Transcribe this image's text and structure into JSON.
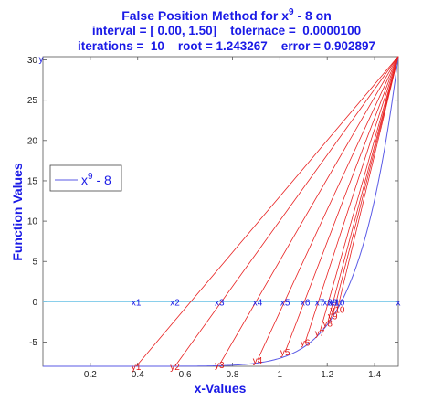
{
  "chart_data": {
    "type": "line",
    "title_line1": "False Position Method for x",
    "title_sup": "9",
    "title_line1_end": " - 8 on",
    "title_line2": "interval = [ 0.00, 1.50]    tolernace =  0.0000100",
    "title_line3": "iterations =  10    root = 1.243267    error = 0.902897",
    "xlabel": "x-Values",
    "ylabel": "Function Values",
    "xlim": [
      0,
      1.5
    ],
    "ylim": [
      -8,
      30.4
    ],
    "xticks": [
      0.2,
      0.4,
      0.6,
      0.8,
      1.0,
      1.2,
      1.4
    ],
    "xtick_labels": [
      "0.2",
      "0.4",
      "0.6",
      "0.8",
      "1",
      "1.2",
      "1.4"
    ],
    "yticks": [
      -5,
      0,
      5,
      10,
      15,
      20,
      25,
      30
    ],
    "ytick_labels": [
      "-5",
      "0",
      "5",
      "10",
      "15",
      "20",
      "25",
      "30"
    ],
    "legend": {
      "base": "x",
      "sup": "9",
      "rest": " - 8",
      "placement": "left"
    },
    "upper_point": {
      "x": 1.5,
      "y": 30.44,
      "label": "x"
    },
    "iterations": [
      {
        "x": 0.3937,
        "y": -7.9998,
        "xlabel": "x1",
        "ylabel": "y1"
      },
      {
        "x": 0.5575,
        "y": -7.9949,
        "xlabel": "x2",
        "ylabel": "y2"
      },
      {
        "x": 0.7453,
        "y": -7.8,
        "xlabel": "x3",
        "ylabel": "y3"
      },
      {
        "x": 0.9062,
        "y": -7.2,
        "xlabel": "x4",
        "ylabel": "y4"
      },
      {
        "x": 1.0226,
        "y": -6.2,
        "xlabel": "x5",
        "ylabel": "y5"
      },
      {
        "x": 1.1071,
        "y": -5.0,
        "xlabel": "x6",
        "ylabel": "y6"
      },
      {
        "x": 1.1685,
        "y": -3.8,
        "xlabel": "x7",
        "ylabel": "y7"
      },
      {
        "x": 1.2018,
        "y": -2.6,
        "xlabel": "x8",
        "ylabel": "y8"
      },
      {
        "x": 1.2234,
        "y": -1.7,
        "xlabel": "x9",
        "ylabel": "y9"
      },
      {
        "x": 1.2433,
        "y": -0.9,
        "xlabel": "x10",
        "ylabel": "y10"
      }
    ],
    "colors": {
      "function": "#5a5ae6",
      "secants": "#e82020",
      "zero_line": "#7ac8e8",
      "labels_x": "#1a1ae6",
      "labels_y": "#e01818"
    }
  }
}
